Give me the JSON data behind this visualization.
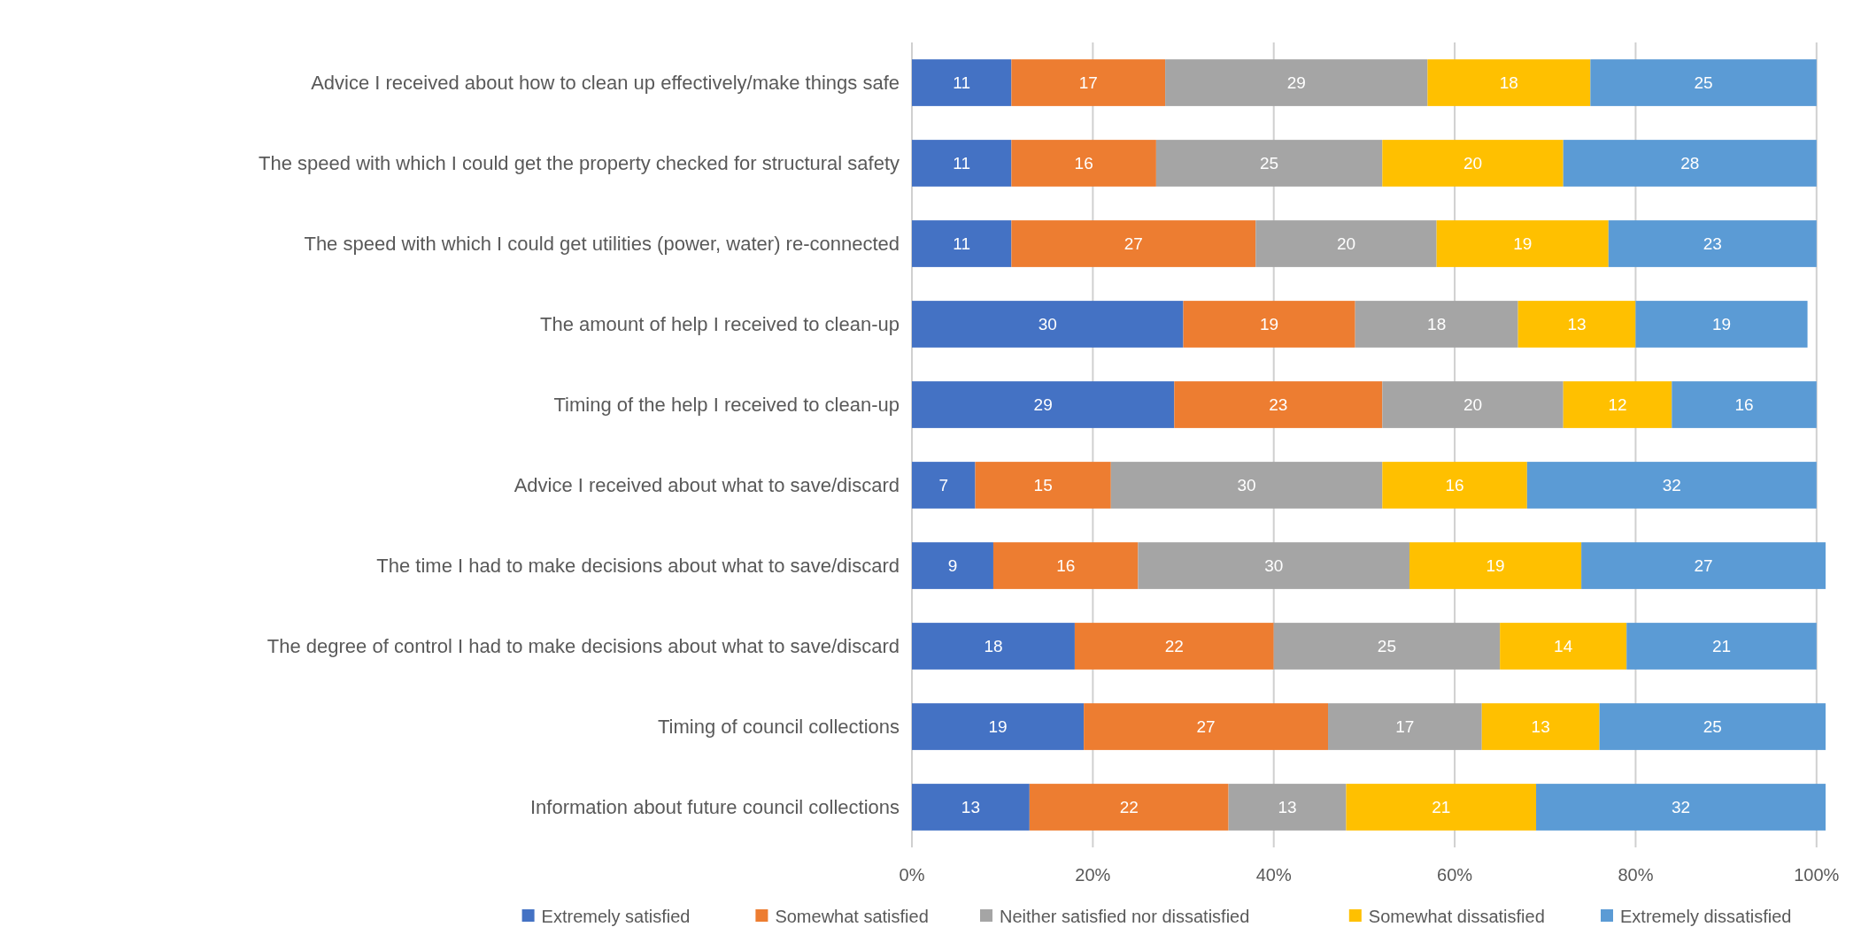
{
  "chart_data": {
    "type": "bar",
    "orientation": "horizontal",
    "stacked": true,
    "categories": [
      "Advice I received about how to clean up effectively/make things safe",
      "The speed with which I could get the property checked for structural safety",
      "The speed with which I could get utilities (power, water) re-connected",
      "The amount of help I received to clean-up",
      "Timing of the help I received to clean-up",
      "Advice I received about what to save/discard",
      "The time I had to make decisions about what to save/discard",
      "The degree of control I had to make decisions about what to save/discard",
      "Timing of council collections",
      "Information about future council collections"
    ],
    "series": [
      {
        "name": "Extremely satisfied",
        "color": "#4472c4",
        "values": [
          11,
          11,
          11,
          30,
          29,
          7,
          9,
          18,
          19,
          13
        ]
      },
      {
        "name": "Somewhat satisfied",
        "color": "#ed7d31",
        "values": [
          17,
          16,
          27,
          19,
          23,
          15,
          16,
          22,
          27,
          22
        ]
      },
      {
        "name": "Neither satisfied nor dissatisfied",
        "color": "#a5a5a5",
        "values": [
          29,
          25,
          20,
          18,
          20,
          30,
          30,
          25,
          17,
          13
        ]
      },
      {
        "name": "Somewhat dissatisfied",
        "color": "#ffc000",
        "values": [
          18,
          20,
          19,
          13,
          12,
          16,
          19,
          14,
          13,
          21
        ]
      },
      {
        "name": "Extremely dissatisfied",
        "color": "#5b9bd5",
        "values": [
          25,
          28,
          23,
          19,
          16,
          32,
          27,
          21,
          25,
          32
        ]
      }
    ],
    "xlim": [
      0,
      101
    ],
    "xticks": [
      {
        "value": 0,
        "label": "0%"
      },
      {
        "value": 20,
        "label": "20%"
      },
      {
        "value": 40,
        "label": "40%"
      },
      {
        "value": 60,
        "label": "60%"
      },
      {
        "value": 80,
        "label": "80%"
      },
      {
        "value": 100,
        "label": "100%"
      }
    ],
    "grid": "x",
    "data_labels": true,
    "legend": "bottom"
  }
}
